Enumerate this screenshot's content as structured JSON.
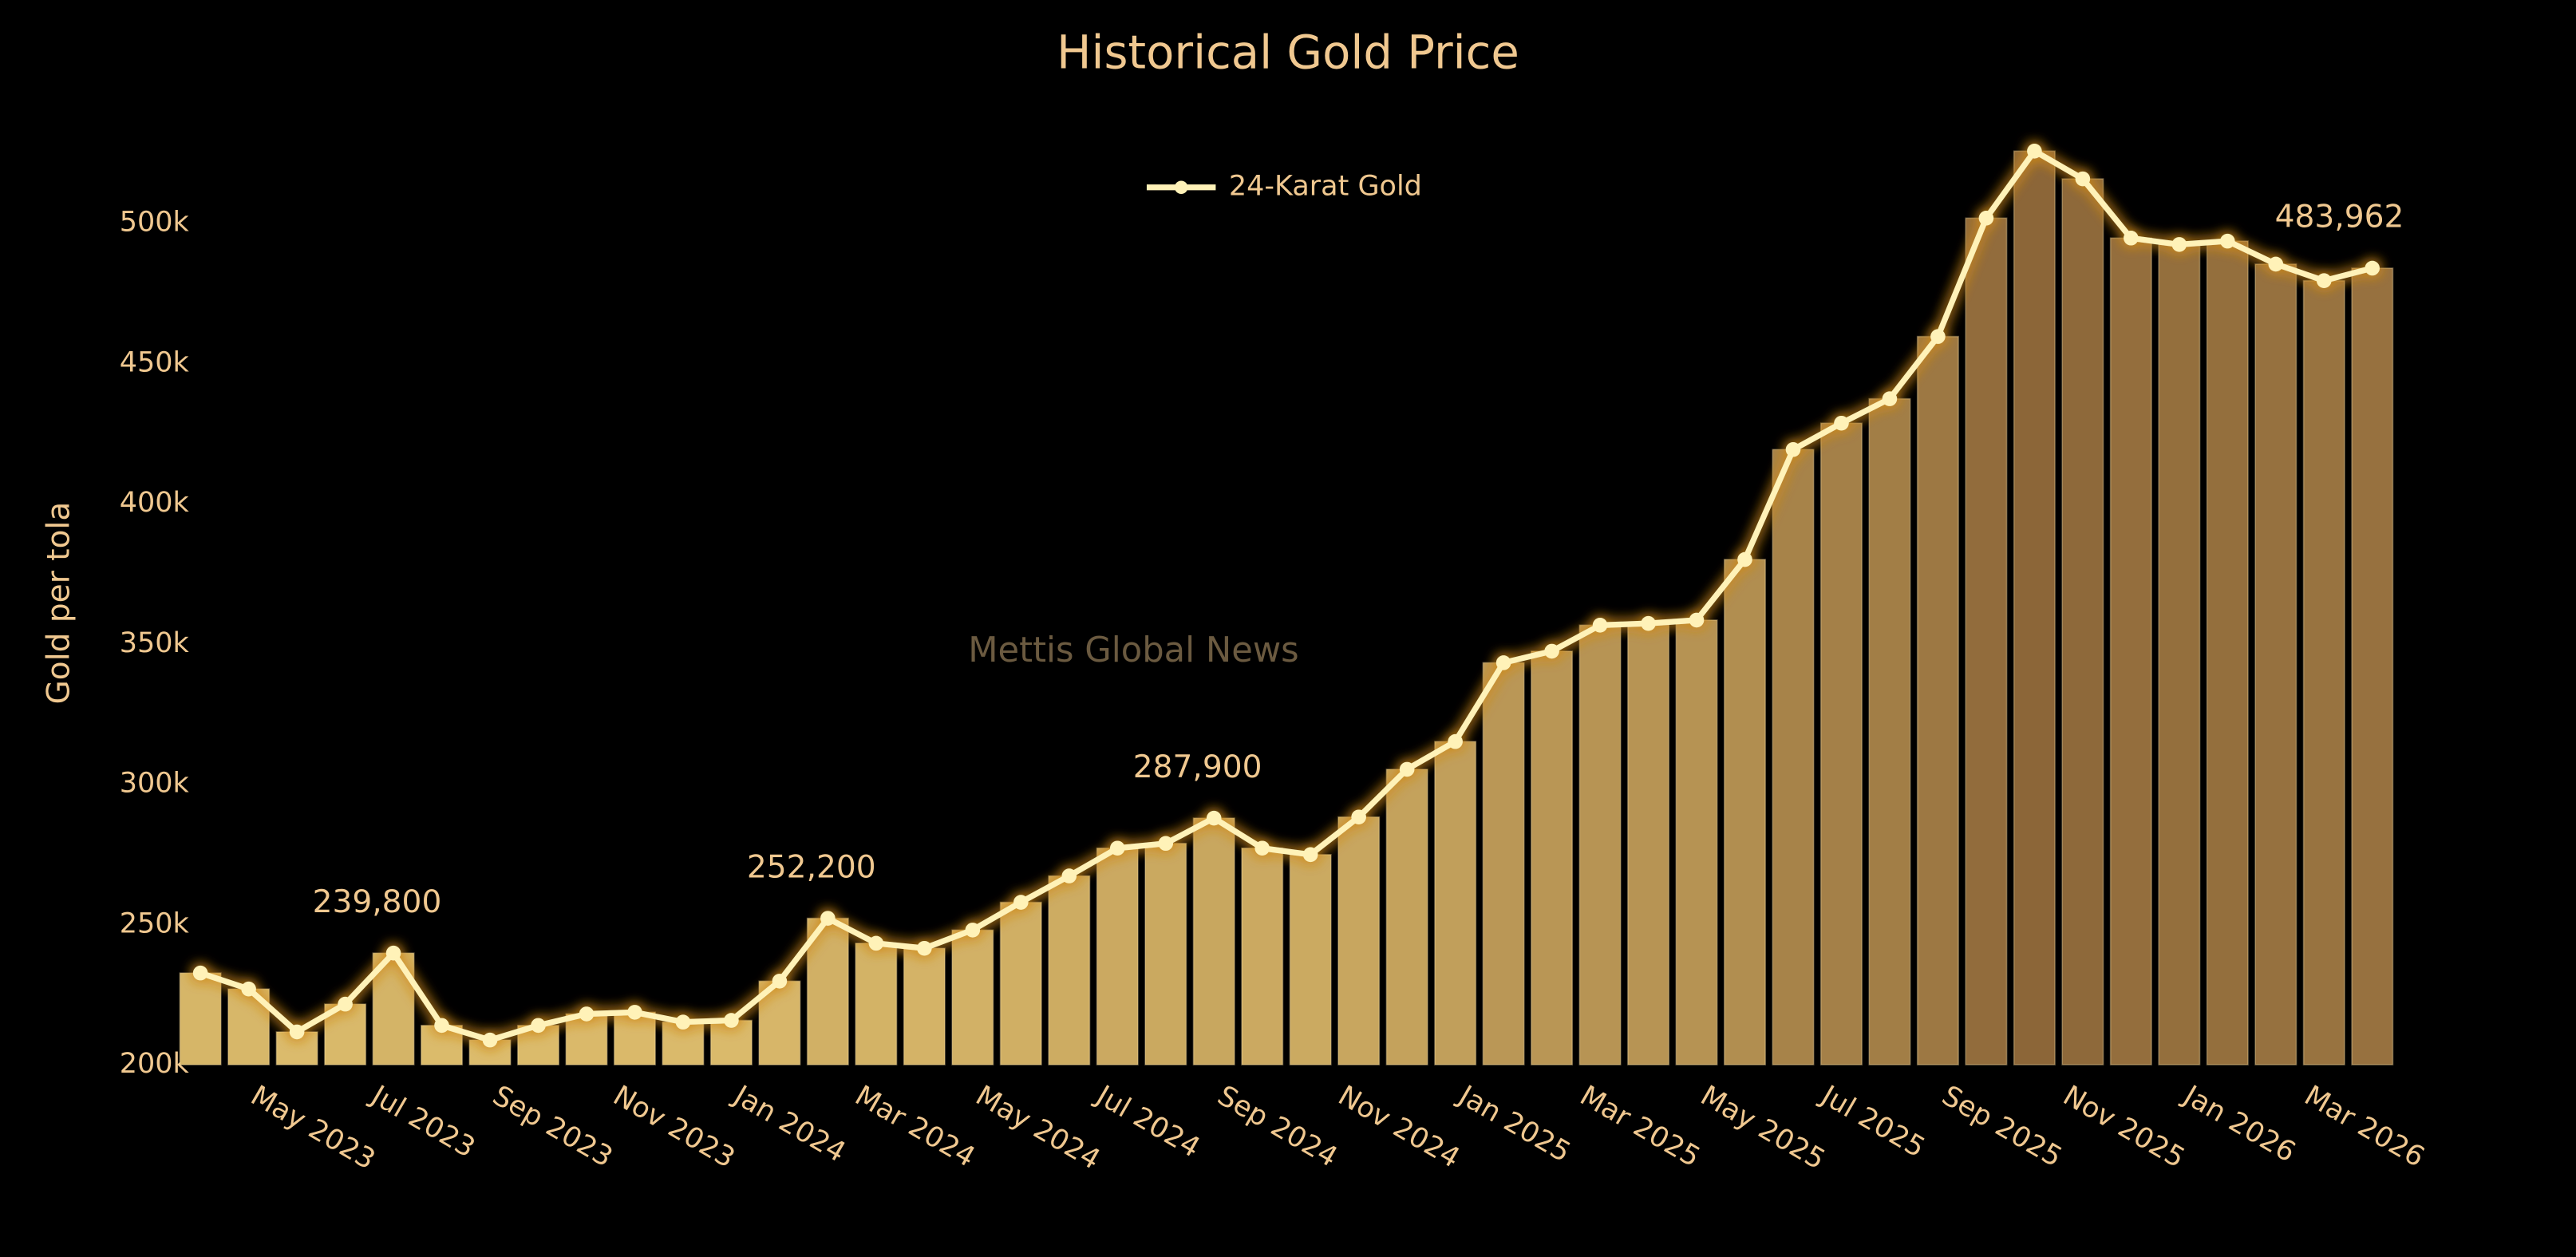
{
  "chart_data": {
    "type": "combo",
    "title": "Historical Gold Price",
    "y_label": "Gold per tola",
    "watermark": "Mettis Global News",
    "legend": "top-center",
    "bar_colors": [
      "#dcbc6c",
      "#8c6638"
    ],
    "xlim": [
      -0.5,
      45.5
    ],
    "xticks": [
      {
        "value": 0.95,
        "label": "May 2023"
      },
      {
        "value": 3.45,
        "label": "Jul 2023"
      },
      {
        "value": 5.96,
        "label": "Sep 2023"
      },
      {
        "value": 8.46,
        "label": "Nov 2023"
      },
      {
        "value": 10.96,
        "label": "Jan 2024"
      },
      {
        "value": 13.47,
        "label": "Mar 2024"
      },
      {
        "value": 15.97,
        "label": "May 2024"
      },
      {
        "value": 18.47,
        "label": "Jul 2024"
      },
      {
        "value": 20.98,
        "label": "Sep 2024"
      },
      {
        "value": 23.48,
        "label": "Nov 2024"
      },
      {
        "value": 25.98,
        "label": "Jan 2025"
      },
      {
        "value": 28.49,
        "label": "Mar 2025"
      },
      {
        "value": 30.99,
        "label": "May 2025"
      },
      {
        "value": 33.49,
        "label": "Jul 2025"
      },
      {
        "value": 35.99,
        "label": "Sep 2025"
      },
      {
        "value": 38.5,
        "label": "Nov 2025"
      },
      {
        "value": 41.0,
        "label": "Jan 2026"
      },
      {
        "value": 43.5,
        "label": "Mar 2026"
      }
    ],
    "ylim": [
      200000,
      528000
    ],
    "yticks": [
      {
        "value": 200000,
        "label": "200k"
      },
      {
        "value": 250000,
        "label": "250k"
      },
      {
        "value": 300000,
        "label": "300k"
      },
      {
        "value": 350000,
        "label": "350k"
      },
      {
        "value": 400000,
        "label": "400k"
      },
      {
        "value": 450000,
        "label": "450k"
      },
      {
        "value": 500000,
        "label": "500k"
      }
    ],
    "series": [
      {
        "name": "24-Karat Gold",
        "color": "#fff2b8",
        "values": [
          232700,
          227000,
          211700,
          221600,
          239800,
          214000,
          208800,
          214000,
          218100,
          218700,
          215200,
          215800,
          229800,
          252200,
          243300,
          241500,
          248000,
          257900,
          267300,
          277200,
          278900,
          287900,
          277200,
          274900,
          288300,
          305300,
          315200,
          343300,
          347400,
          356700,
          357300,
          358500,
          380100,
          419300,
          428700,
          437400,
          459600,
          501800,
          525700,
          515800,
          494700,
          492400,
          493600,
          485400,
          479500,
          483962
        ],
        "value_labels": [
          null,
          null,
          null,
          null,
          "239,800",
          null,
          null,
          null,
          null,
          null,
          null,
          null,
          null,
          "252,200",
          null,
          null,
          null,
          null,
          null,
          null,
          null,
          "287,900",
          null,
          null,
          null,
          null,
          null,
          null,
          null,
          null,
          null,
          null,
          null,
          null,
          null,
          null,
          null,
          null,
          null,
          null,
          null,
          null,
          null,
          null,
          null,
          "483,962"
        ]
      }
    ]
  }
}
